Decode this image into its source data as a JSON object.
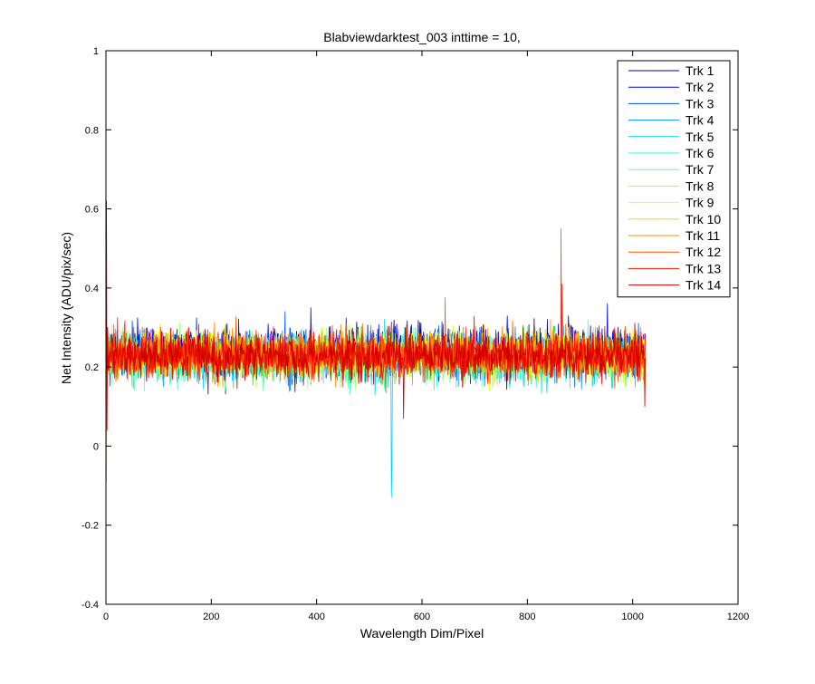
{
  "chart_data": {
    "type": "line",
    "title": "Blabviewdarktest_003 inttime = 10,",
    "xlabel": "Wavelength Dim/Pixel",
    "ylabel": "Net Intensity (ADU/pix/sec)",
    "xlim": [
      0,
      1200
    ],
    "ylim": [
      -0.4,
      1
    ],
    "xticks": [
      0,
      200,
      400,
      600,
      800,
      1000,
      1200
    ],
    "yticks": [
      -0.4,
      -0.2,
      0,
      0.2,
      0.4,
      0.6,
      0.8,
      1
    ],
    "xtick_labels": [
      "0",
      "200",
      "400",
      "600",
      "800",
      "1000",
      "1200"
    ],
    "ytick_labels": [
      "-0.4",
      "-0.2",
      "0",
      "0.2",
      "0.4",
      "0.6",
      "0.8",
      "1"
    ],
    "grid": false,
    "legend_position": "top-right",
    "x_range": [
      0,
      1024
    ],
    "noise_band": [
      0.13,
      0.33
    ],
    "series": [
      {
        "name": "Trk 1",
        "color": "#00008f",
        "mean": 0.245,
        "spikes": []
      },
      {
        "name": "Trk 2",
        "color": "#0000ff",
        "mean": 0.24,
        "spikes": [
          [
            389,
            0.35
          ],
          [
            952,
            0.36
          ]
        ]
      },
      {
        "name": "Trk 3",
        "color": "#0050ff",
        "mean": 0.23,
        "spikes": [
          [
            340,
            0.34
          ]
        ]
      },
      {
        "name": "Trk 4",
        "color": "#0090ff",
        "mean": 0.225,
        "spikes": []
      },
      {
        "name": "Trk 5",
        "color": "#00d0ff",
        "mean": 0.22,
        "spikes": [
          [
            542,
            -0.13
          ],
          [
            543,
            -0.05
          ]
        ]
      },
      {
        "name": "Trk 6",
        "color": "#20ffe0",
        "mean": 0.22,
        "spikes": []
      },
      {
        "name": "Trk 7",
        "color": "#60ffa0",
        "mean": 0.225,
        "spikes": []
      },
      {
        "name": "Trk 8",
        "color": "#a0ff60",
        "mean": 0.23,
        "spikes": []
      },
      {
        "name": "Trk 9",
        "color": "#e0ff20",
        "mean": 0.23,
        "spikes": []
      },
      {
        "name": "Trk 10",
        "color": "#ffd000",
        "mean": 0.23,
        "spikes": [
          [
            1,
            -0.09
          ]
        ]
      },
      {
        "name": "Trk 11",
        "color": "#ff9000",
        "mean": 0.235,
        "spikes": [
          [
            0,
            0.0
          ]
        ]
      },
      {
        "name": "Trk 12",
        "color": "#ff5000",
        "mean": 0.23,
        "spikes": [
          [
            864,
            0.55
          ],
          [
            644,
            0.375
          ]
        ]
      },
      {
        "name": "Trk 13",
        "color": "#ff1000",
        "mean": 0.23,
        "spikes": [
          [
            866,
            0.41
          ]
        ]
      },
      {
        "name": "Trk 14",
        "color": "#d00000",
        "mean": 0.23,
        "spikes": [
          [
            1,
            0.62
          ],
          [
            2,
            0.04
          ],
          [
            565,
            0.07
          ],
          [
            1023,
            0.1
          ]
        ]
      }
    ]
  }
}
